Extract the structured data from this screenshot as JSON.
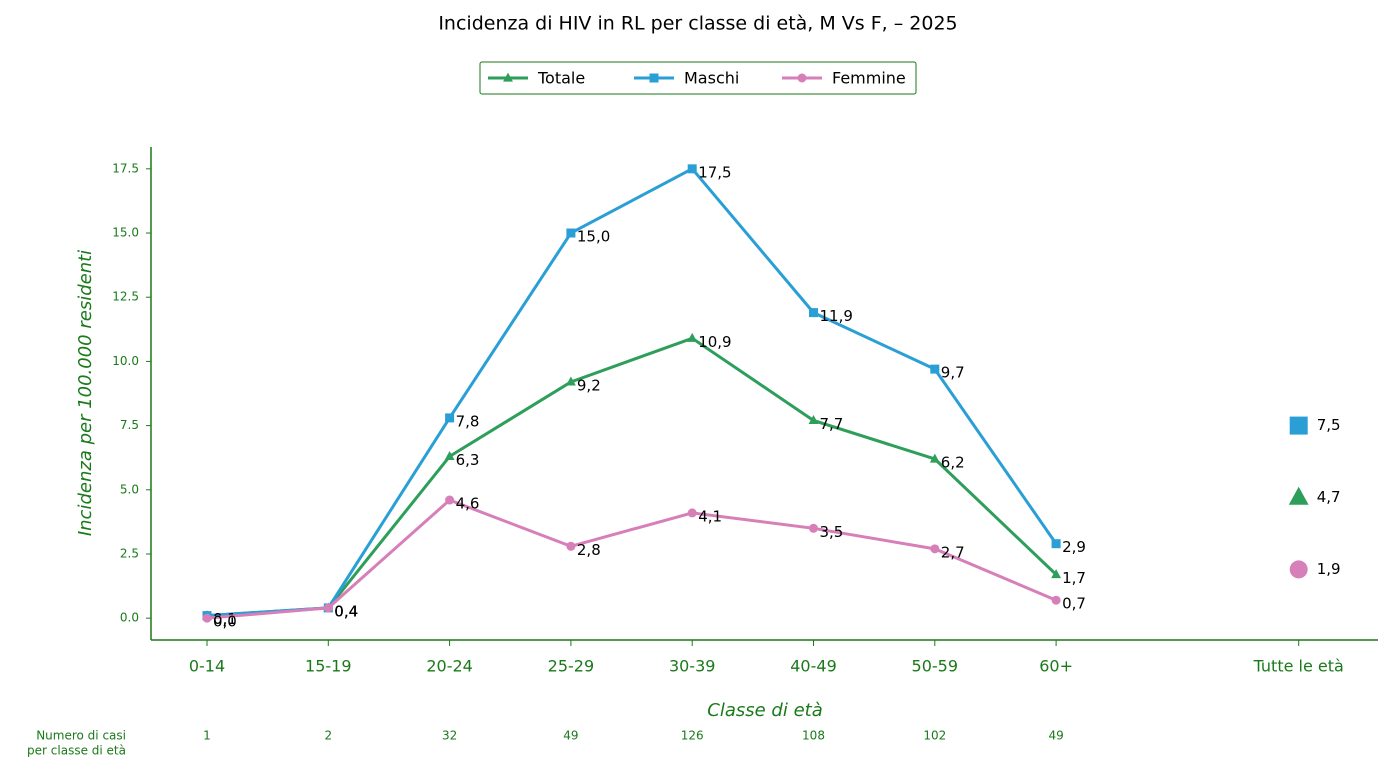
{
  "chart_data": {
    "type": "line",
    "title": "Incidenza di HIV in RL per classe di età, M Vs F,  – 2025",
    "x_label": "Classe di età",
    "y_label": "Incidenza per 100.000 residenti",
    "categories": [
      "0-14",
      "15-19",
      "20-24",
      "25-29",
      "30-39",
      "40-49",
      "50-59",
      "60+",
      null,
      "Tutte le età"
    ],
    "series": [
      {
        "name": "Totale",
        "color": "#2e9e5b",
        "marker": "triangle",
        "values": [
          0.1,
          0.4,
          6.3,
          9.2,
          10.9,
          7.7,
          6.2,
          1.7,
          null,
          4.7
        ],
        "value_labels": [
          "0,1",
          "0,4",
          "6,3",
          "9,2",
          "10,9",
          "7,7",
          "6,2",
          "1,7",
          null,
          "4,7"
        ]
      },
      {
        "name": "Maschi",
        "color": "#2a9fd6",
        "marker": "square",
        "values": [
          0.1,
          0.4,
          7.8,
          15.0,
          17.5,
          11.9,
          9.7,
          2.9,
          null,
          7.5
        ],
        "value_labels": [
          "0,1",
          "0,4",
          "7,8",
          "15,0",
          "17,5",
          "11,9",
          "9,7",
          "2,9",
          null,
          "7,5"
        ]
      },
      {
        "name": "Femmine",
        "color": "#d67fb8",
        "marker": "circle",
        "values": [
          0.0,
          0.4,
          4.6,
          2.8,
          4.1,
          3.5,
          2.7,
          0.7,
          null,
          1.9
        ],
        "value_labels": [
          "0,0",
          "0,4",
          "4,6",
          "2,8",
          "4,1",
          "3,5",
          "2,7",
          "0,7",
          null,
          "1,9"
        ]
      }
    ],
    "cases": {
      "label": [
        "Numero di casi",
        "per classe di età"
      ],
      "values": [
        1,
        2,
        32,
        49,
        126,
        108,
        102,
        49,
        null,
        null
      ]
    },
    "ylim": [
      -0.85,
      18.35
    ],
    "yticks": [
      {
        "value": 0,
        "label": "0.0"
      },
      2.5,
      {
        "value": 5,
        "label": "5.0"
      },
      7.5,
      {
        "value": 10,
        "label": "10.0"
      },
      12.5,
      {
        "value": 15,
        "label": "15.0"
      },
      17.5
    ],
    "axis_color": "#1a7a1a",
    "legend": "top"
  }
}
